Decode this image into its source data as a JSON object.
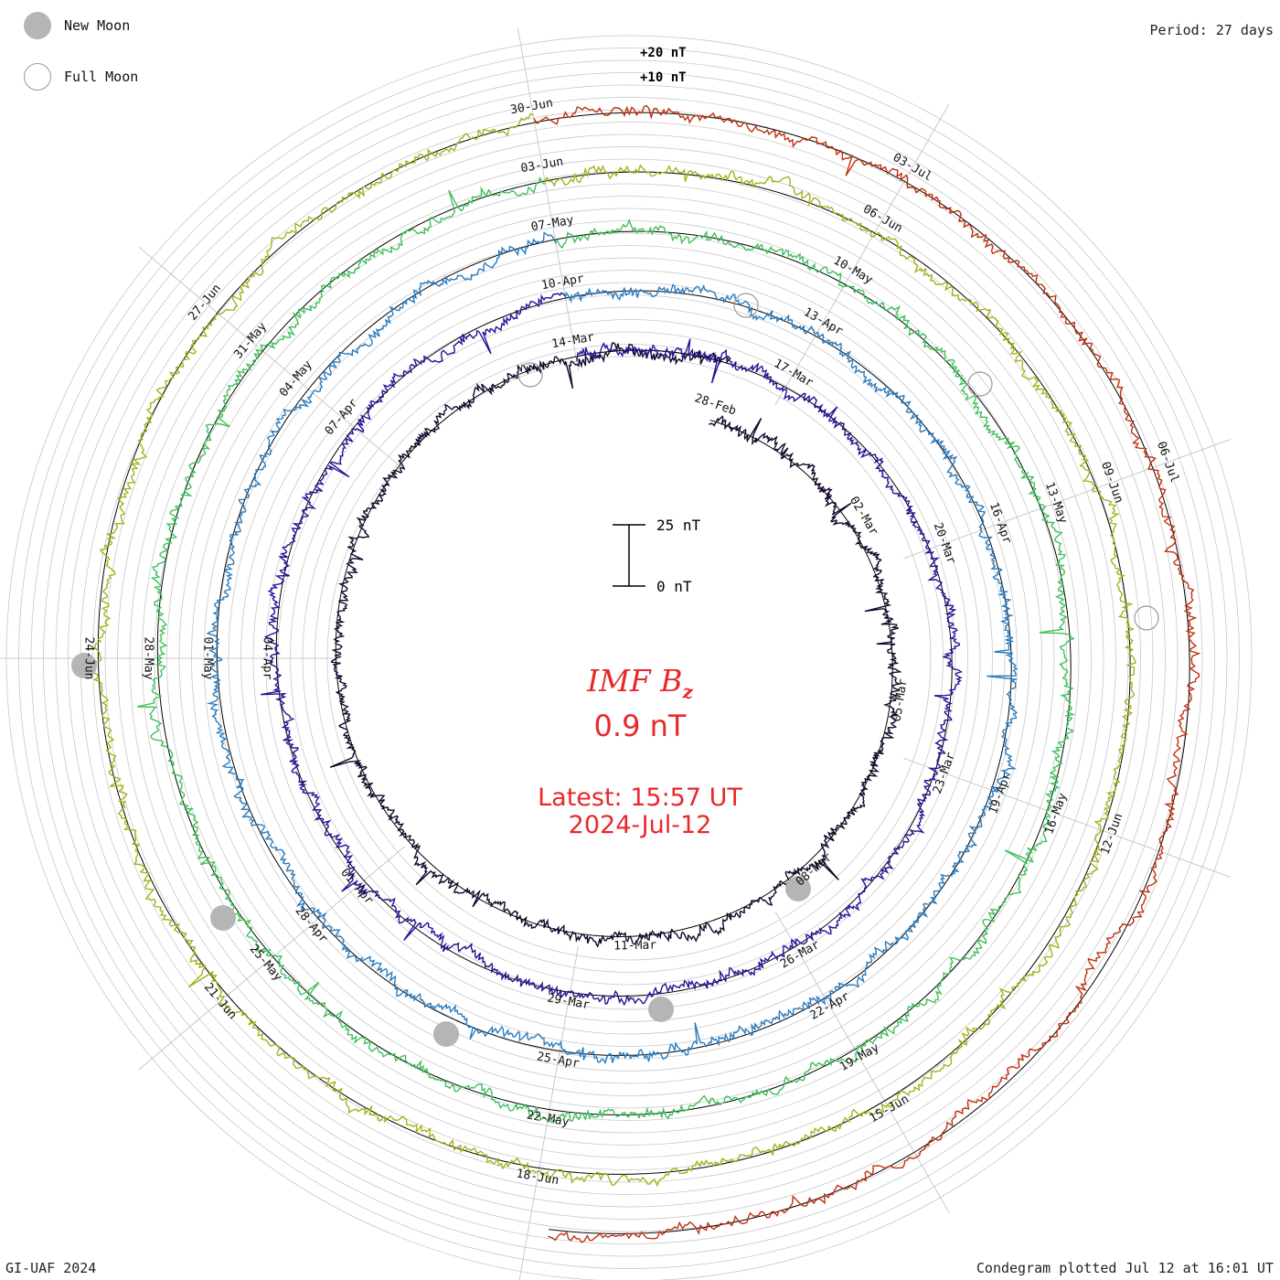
{
  "header": {
    "legend_new_moon": "New Moon",
    "legend_full_moon": "Full Moon",
    "period": "Period: 27 days"
  },
  "footer": {
    "credit": "GI-UAF 2024",
    "plotted": "Condegram plotted Jul 12 at 16:01 UT"
  },
  "center": {
    "title_main": "IMF B",
    "title_sub": "z",
    "value": "0.9 nT",
    "latest_time": "Latest: 15:57 UT",
    "latest_date": "2024-Jul-12"
  },
  "colors": {
    "title_red": "#e8282c",
    "grid": "#bdbdbd",
    "new_moon_fill": "#b5b5b5"
  },
  "chart_data": {
    "type": "line",
    "subtype": "polar condegram (spiral, 27-day period)",
    "title": "IMF Bz",
    "current_value_nT": 0.9,
    "period_days": 27,
    "scale_bar": {
      "low_label": "0 nT",
      "high_label": "25 nT",
      "low_nT": 0,
      "high_nT": 25
    },
    "offset_labels": [
      "+20 nT",
      "+10 nT"
    ],
    "rotations": [
      {
        "index": 1,
        "color": "#15062b",
        "date_labels": [
          "28-Feb",
          "02-Mar",
          "05-Mar",
          "08-Mar",
          "11-Mar"
        ]
      },
      {
        "index": 2,
        "color": "#221496",
        "date_labels": [
          "14-Mar",
          "17-Mar",
          "20-Mar",
          "23-Mar",
          "26-Mar",
          "29-Mar",
          "01-Apr",
          "04-Apr",
          "07-Apr"
        ]
      },
      {
        "index": 3,
        "color": "#2a7cc0",
        "date_labels": [
          "10-Apr",
          "13-Apr",
          "16-Apr",
          "19-Apr",
          "22-Apr",
          "25-Apr",
          "28-Apr",
          "01-May",
          "04-May"
        ]
      },
      {
        "index": 4,
        "color": "#3fc15c",
        "date_labels": [
          "07-May",
          "10-May",
          "13-May",
          "16-May",
          "19-May",
          "22-May",
          "25-May",
          "28-May",
          "31-May"
        ]
      },
      {
        "index": 5,
        "color": "#a7b11c",
        "date_labels": [
          "03-Jun",
          "06-Jun",
          "09-Jun",
          "12-Jun",
          "15-Jun",
          "18-Jun",
          "21-Jun",
          "24-Jun",
          "27-Jun"
        ]
      },
      {
        "index": 6,
        "color": "#c0300f",
        "date_labels": [
          "30-Jun",
          "03-Jul",
          "06-Jul"
        ]
      }
    ],
    "new_moon_dates": [
      "10-Mar",
      "08-Apr",
      "08-May",
      "06-Jun",
      "05-Jul"
    ],
    "full_moon_dates": [
      "25-Mar",
      "23-Apr",
      "23-May",
      "22-Jun"
    ],
    "series_note": "Bz traces plotted as noisy radial deviations around each turn of the spiral; values roughly within ±25 nT"
  }
}
